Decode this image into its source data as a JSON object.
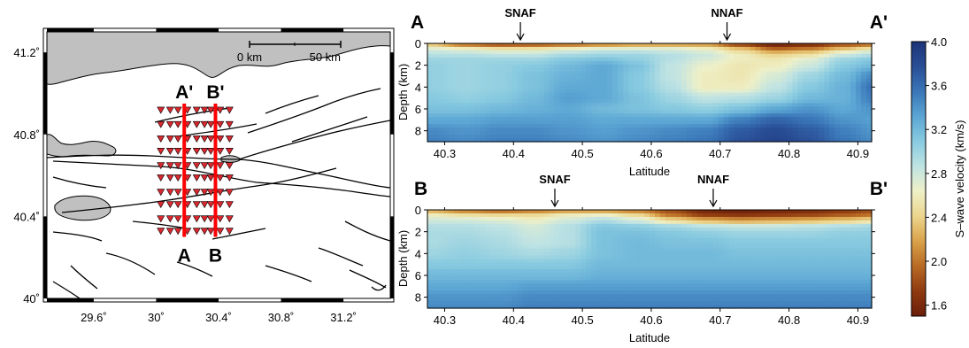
{
  "chart_data": [
    {
      "type": "map",
      "x_ticks": [
        "29.6˚",
        "30˚",
        "30.4˚",
        "30.8˚",
        "31.2˚"
      ],
      "x_values": [
        29.6,
        30.0,
        30.4,
        30.8,
        31.2
      ],
      "y_ticks": [
        "41.2˚",
        "40.8˚",
        "40.4˚",
        "40˚"
      ],
      "y_values": [
        41.2,
        40.8,
        40.4,
        40.0
      ],
      "xlim": [
        29.3,
        31.5
      ],
      "ylim": [
        40.0,
        41.3
      ],
      "scale_bar": {
        "left_label": "0 km",
        "right_label": "50 km"
      },
      "profiles": [
        {
          "top_label": "A'",
          "bottom_label": "A",
          "lon": 30.18,
          "lat_range": [
            40.3,
            40.95
          ]
        },
        {
          "top_label": "B'",
          "bottom_label": "B",
          "lon": 30.38,
          "lat_range": [
            40.3,
            40.95
          ]
        }
      ],
      "station_columns_lon": [
        30.03,
        30.09,
        30.14,
        30.2,
        30.26,
        30.31,
        30.35,
        30.41,
        30.47
      ],
      "station_rows_lat": [
        40.92,
        40.85,
        40.78,
        40.72,
        40.65,
        40.59,
        40.52,
        40.46,
        40.39,
        40.33
      ],
      "colors": {
        "land": "#c0c0c0",
        "station": "#d9282f",
        "profile": "#ff0000"
      }
    },
    {
      "type": "heatmap",
      "panel_label_left": "A",
      "panel_label_right": "A'",
      "annotations": [
        {
          "text": "SNAF",
          "x": 40.41
        },
        {
          "text": "NNAF",
          "x": 40.71
        }
      ],
      "xlabel": "Latitude",
      "ylabel": "Depth (km)",
      "xlim": [
        40.275,
        40.92
      ],
      "ylim": [
        0,
        9
      ],
      "x_ticks": [
        "40.3",
        "40.4",
        "40.5",
        "40.6",
        "40.7",
        "40.8",
        "40.9"
      ],
      "y_ticks": [
        "0",
        "2",
        "4",
        "6",
        "8"
      ],
      "velocity_grid": {
        "lat": [
          40.28,
          40.33,
          40.38,
          40.43,
          40.48,
          40.53,
          40.58,
          40.63,
          40.68,
          40.73,
          40.78,
          40.83,
          40.88,
          40.92
        ],
        "depth": [
          0,
          0.5,
          1,
          1.5,
          2,
          3,
          4,
          5,
          6,
          7,
          8,
          9
        ],
        "vs": [
          [
            2.3,
            1.9,
            1.75,
            1.8,
            1.9,
            2.0,
            2.1,
            2.1,
            2.1,
            1.7,
            1.5,
            1.6,
            1.8,
            1.9
          ],
          [
            2.7,
            2.6,
            2.5,
            2.5,
            2.6,
            2.7,
            2.7,
            2.7,
            2.6,
            2.3,
            1.9,
            2.0,
            2.3,
            2.5
          ],
          [
            2.9,
            2.9,
            2.85,
            2.85,
            2.95,
            3.0,
            3.0,
            2.9,
            2.8,
            2.6,
            2.4,
            2.5,
            2.8,
            2.9
          ],
          [
            3.0,
            3.0,
            3.0,
            3.0,
            3.1,
            3.15,
            3.05,
            2.9,
            2.75,
            2.6,
            2.55,
            2.7,
            3.0,
            3.1
          ],
          [
            3.05,
            3.0,
            3.05,
            3.1,
            3.2,
            3.3,
            3.15,
            2.85,
            2.65,
            2.55,
            2.6,
            2.8,
            3.1,
            3.2
          ],
          [
            3.05,
            3.0,
            3.05,
            3.15,
            3.25,
            3.3,
            3.1,
            2.85,
            2.6,
            2.55,
            2.75,
            3.0,
            3.2,
            3.45
          ],
          [
            3.05,
            3.0,
            3.05,
            3.15,
            3.3,
            3.3,
            3.1,
            2.9,
            2.6,
            2.6,
            2.85,
            3.1,
            3.25,
            3.55
          ],
          [
            3.1,
            3.05,
            3.1,
            3.2,
            3.35,
            3.3,
            3.15,
            3.0,
            2.85,
            2.9,
            3.0,
            3.2,
            3.25,
            3.5
          ],
          [
            3.15,
            3.15,
            3.2,
            3.25,
            3.3,
            3.2,
            3.15,
            3.1,
            3.05,
            3.15,
            3.3,
            3.4,
            3.3,
            3.4
          ],
          [
            3.3,
            3.3,
            3.35,
            3.35,
            3.35,
            3.3,
            3.3,
            3.3,
            3.3,
            3.5,
            3.65,
            3.55,
            3.4,
            3.35
          ],
          [
            3.45,
            3.4,
            3.45,
            3.45,
            3.4,
            3.35,
            3.4,
            3.45,
            3.5,
            3.7,
            3.8,
            3.7,
            3.5,
            3.4
          ],
          [
            3.5,
            3.45,
            3.5,
            3.5,
            3.45,
            3.4,
            3.45,
            3.5,
            3.55,
            3.75,
            3.85,
            3.75,
            3.55,
            3.45
          ]
        ]
      }
    },
    {
      "type": "heatmap",
      "panel_label_left": "B",
      "panel_label_right": "B'",
      "annotations": [
        {
          "text": "SNAF",
          "x": 40.46
        },
        {
          "text": "NNAF",
          "x": 40.69
        }
      ],
      "xlabel": "Latitude",
      "ylabel": "Depth (km)",
      "xlim": [
        40.275,
        40.92
      ],
      "ylim": [
        0,
        9
      ],
      "x_ticks": [
        "40.3",
        "40.4",
        "40.5",
        "40.6",
        "40.7",
        "40.8",
        "40.9"
      ],
      "y_ticks": [
        "0",
        "2",
        "4",
        "6",
        "8"
      ],
      "velocity_grid": {
        "lat": [
          40.28,
          40.33,
          40.38,
          40.43,
          40.48,
          40.53,
          40.58,
          40.63,
          40.68,
          40.73,
          40.78,
          40.83,
          40.88,
          40.92
        ],
        "depth": [
          0,
          0.5,
          1,
          1.5,
          2,
          3,
          4,
          5,
          6,
          7,
          8,
          9
        ],
        "vs": [
          [
            2.2,
            2.0,
            1.9,
            2.0,
            2.1,
            2.1,
            2.0,
            1.8,
            1.55,
            1.5,
            1.55,
            1.6,
            1.7,
            1.8
          ],
          [
            2.6,
            2.5,
            2.45,
            2.45,
            2.6,
            2.65,
            2.45,
            2.0,
            1.75,
            1.7,
            1.75,
            1.8,
            1.9,
            2.0
          ],
          [
            2.8,
            2.8,
            2.75,
            2.65,
            2.8,
            2.95,
            2.8,
            2.5,
            2.3,
            2.2,
            2.25,
            2.3,
            2.4,
            2.5
          ],
          [
            2.9,
            2.9,
            2.85,
            2.75,
            2.9,
            3.1,
            3.05,
            2.95,
            2.85,
            2.8,
            2.8,
            2.85,
            2.9,
            2.95
          ],
          [
            2.95,
            2.95,
            2.9,
            2.8,
            2.9,
            3.15,
            3.15,
            3.1,
            3.05,
            3.0,
            3.0,
            3.0,
            3.05,
            3.05
          ],
          [
            2.95,
            3.0,
            2.95,
            2.85,
            2.9,
            3.15,
            3.2,
            3.15,
            3.15,
            3.1,
            3.1,
            3.1,
            3.1,
            3.1
          ],
          [
            3.0,
            3.05,
            3.0,
            2.95,
            3.0,
            3.15,
            3.2,
            3.2,
            3.2,
            3.15,
            3.15,
            3.15,
            3.15,
            3.15
          ],
          [
            3.1,
            3.1,
            3.1,
            3.1,
            3.1,
            3.2,
            3.2,
            3.2,
            3.2,
            3.2,
            3.2,
            3.2,
            3.2,
            3.2
          ],
          [
            3.2,
            3.2,
            3.2,
            3.2,
            3.2,
            3.25,
            3.25,
            3.25,
            3.25,
            3.25,
            3.25,
            3.25,
            3.25,
            3.25
          ],
          [
            3.3,
            3.3,
            3.3,
            3.35,
            3.35,
            3.35,
            3.35,
            3.35,
            3.35,
            3.35,
            3.35,
            3.35,
            3.35,
            3.35
          ],
          [
            3.4,
            3.4,
            3.4,
            3.45,
            3.45,
            3.45,
            3.45,
            3.45,
            3.45,
            3.45,
            3.45,
            3.45,
            3.45,
            3.45
          ],
          [
            3.45,
            3.45,
            3.45,
            3.5,
            3.5,
            3.5,
            3.5,
            3.5,
            3.5,
            3.5,
            3.5,
            3.5,
            3.5,
            3.5
          ]
        ]
      }
    },
    {
      "type": "colorbar",
      "label": "S–wave velocity (km/s)",
      "range": [
        1.5,
        4.0
      ],
      "ticks": [
        "4.0",
        "3.6",
        "3.2",
        "2.8",
        "2.4",
        "2.0",
        "1.6"
      ],
      "tick_values": [
        4.0,
        3.6,
        3.2,
        2.8,
        2.4,
        2.0,
        1.6
      ],
      "colormap": [
        "#6b1e0a",
        "#8f3a10",
        "#b86a24",
        "#d9a24a",
        "#ecd58c",
        "#eef0c8",
        "#bfe3e3",
        "#89cbe0",
        "#5ba6d4",
        "#3a76b8",
        "#294e96",
        "#1d3478"
      ]
    }
  ]
}
